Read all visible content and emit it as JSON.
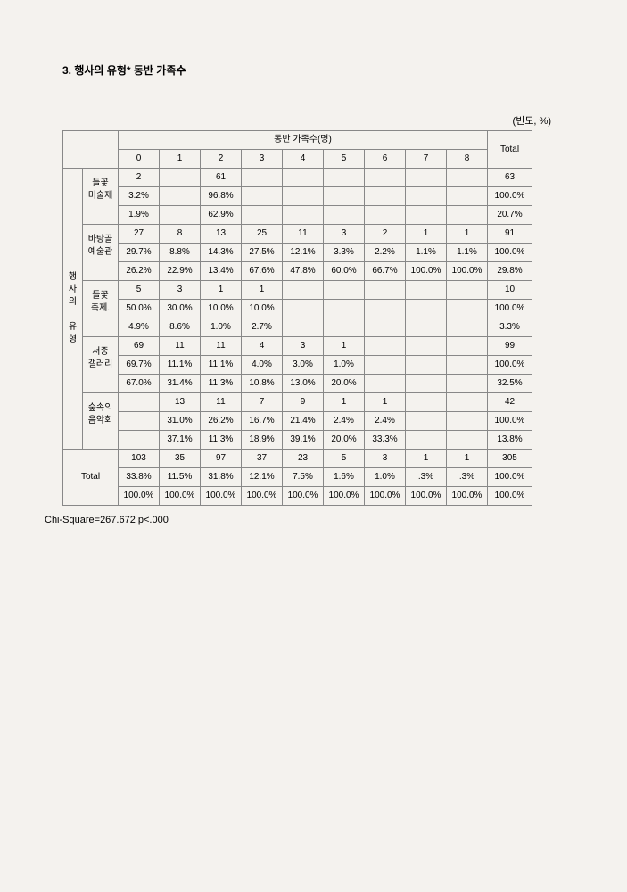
{
  "section_title": "3. 행사의 유형* 동반 가족수",
  "unit_label": "(빈도, %)",
  "header_main": "동반 가족수(명)",
  "header_total": "Total",
  "cols": [
    "0",
    "1",
    "2",
    "3",
    "4",
    "5",
    "6",
    "7",
    "8"
  ],
  "side_head_lines": [
    "행",
    "사",
    "의",
    "",
    "유",
    "형"
  ],
  "blocks": [
    {
      "label_lines": [
        "들꽃",
        "미술제",
        ""
      ],
      "rows": [
        [
          "2",
          "",
          "61",
          "",
          "",
          "",
          "",
          "",
          "",
          "63"
        ],
        [
          "3.2%",
          "",
          "96.8%",
          "",
          "",
          "",
          "",
          "",
          "",
          "100.0%"
        ],
        [
          "1.9%",
          "",
          "62.9%",
          "",
          "",
          "",
          "",
          "",
          "",
          "20.7%"
        ]
      ]
    },
    {
      "label_lines": [
        "바탕골",
        "예술관",
        ""
      ],
      "rows": [
        [
          "27",
          "8",
          "13",
          "25",
          "11",
          "3",
          "2",
          "1",
          "1",
          "91"
        ],
        [
          "29.7%",
          "8.8%",
          "14.3%",
          "27.5%",
          "12.1%",
          "3.3%",
          "2.2%",
          "1.1%",
          "1.1%",
          "100.0%"
        ],
        [
          "26.2%",
          "22.9%",
          "13.4%",
          "67.6%",
          "47.8%",
          "60.0%",
          "66.7%",
          "100.0%",
          "100.0%",
          "29.8%"
        ]
      ]
    },
    {
      "label_lines": [
        "들꽃",
        "축제.",
        ""
      ],
      "rows": [
        [
          "5",
          "3",
          "1",
          "1",
          "",
          "",
          "",
          "",
          "",
          "10"
        ],
        [
          "50.0%",
          "30.0%",
          "10.0%",
          "10.0%",
          "",
          "",
          "",
          "",
          "",
          "100.0%"
        ],
        [
          "4.9%",
          "8.6%",
          "1.0%",
          "2.7%",
          "",
          "",
          "",
          "",
          "",
          "3.3%"
        ]
      ]
    },
    {
      "label_lines": [
        "서종",
        "갤러리",
        ""
      ],
      "rows": [
        [
          "69",
          "11",
          "11",
          "4",
          "3",
          "1",
          "",
          "",
          "",
          "99"
        ],
        [
          "69.7%",
          "11.1%",
          "11.1%",
          "4.0%",
          "3.0%",
          "1.0%",
          "",
          "",
          "",
          "100.0%"
        ],
        [
          "67.0%",
          "31.4%",
          "11.3%",
          "10.8%",
          "13.0%",
          "20.0%",
          "",
          "",
          "",
          "32.5%"
        ]
      ]
    },
    {
      "label_lines": [
        "숲속의",
        "음악회",
        ""
      ],
      "rows": [
        [
          "",
          "13",
          "11",
          "7",
          "9",
          "1",
          "1",
          "",
          "",
          "42"
        ],
        [
          "",
          "31.0%",
          "26.2%",
          "16.7%",
          "21.4%",
          "2.4%",
          "2.4%",
          "",
          "",
          "100.0%"
        ],
        [
          "",
          "37.1%",
          "11.3%",
          "18.9%",
          "39.1%",
          "20.0%",
          "33.3%",
          "",
          "",
          "13.8%"
        ]
      ]
    }
  ],
  "total_label": "Total",
  "total_rows": [
    [
      "103",
      "35",
      "97",
      "37",
      "23",
      "5",
      "3",
      "1",
      "1",
      "305"
    ],
    [
      "33.8%",
      "11.5%",
      "31.8%",
      "12.1%",
      "7.5%",
      "1.6%",
      "1.0%",
      ".3%",
      ".3%",
      "100.0%"
    ],
    [
      "100.0%",
      "100.0%",
      "100.0%",
      "100.0%",
      "100.0%",
      "100.0%",
      "100.0%",
      "100.0%",
      "100.0%",
      "100.0%"
    ]
  ],
  "footer": "Chi-Square=267.672 p<.000",
  "table": {
    "col_widths": {
      "side": 22,
      "label": 40,
      "data": 46,
      "total": 50
    },
    "border_color": "#888",
    "bg": "#f4f2ee",
    "font_size": 10
  }
}
